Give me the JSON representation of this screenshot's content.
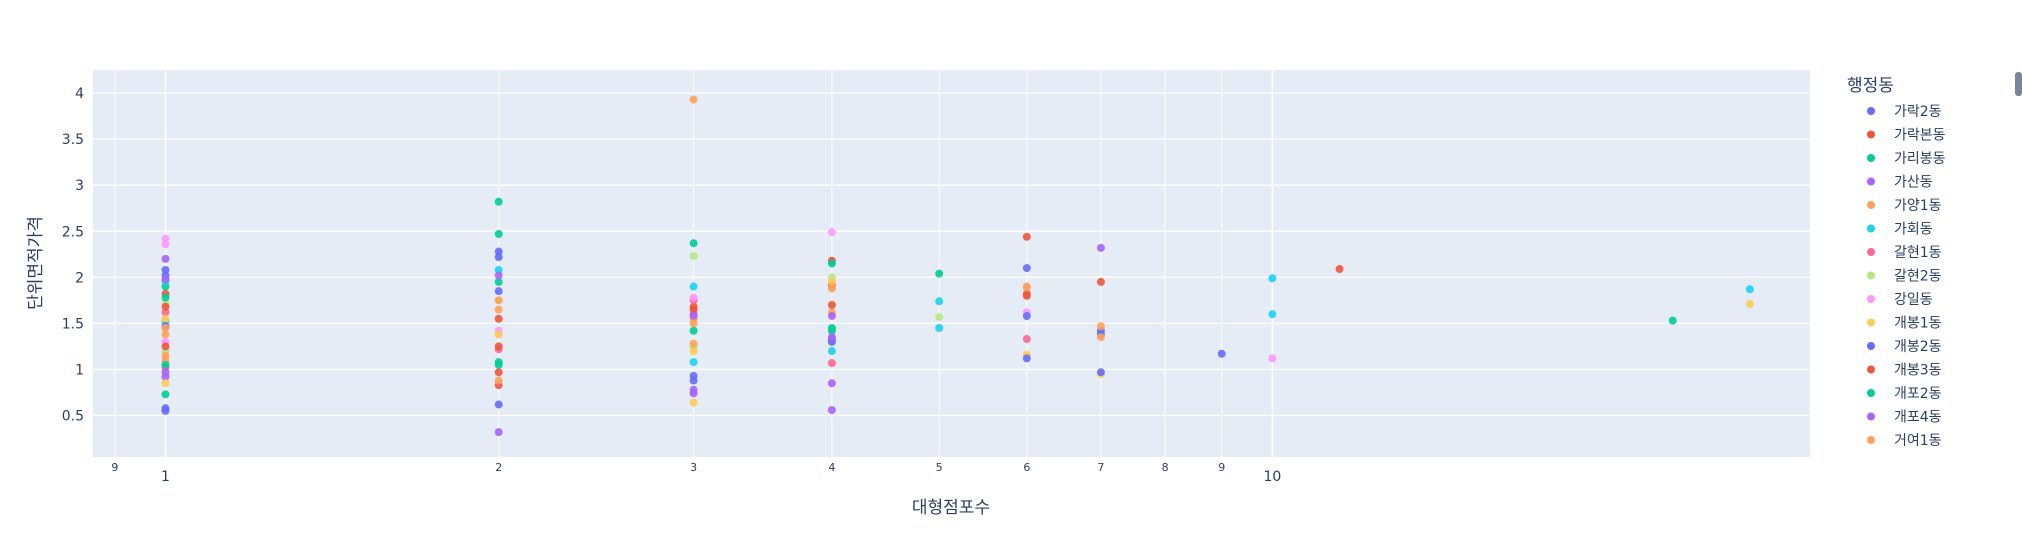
{
  "chart_data": {
    "type": "scatter",
    "xlabel": "대형점포수",
    "ylabel": "단위면적가격",
    "x_scale": "log",
    "xlim": [
      0.86,
      30.6
    ],
    "ylim": [
      0.05,
      4.25
    ],
    "x_major_ticks": [
      1,
      10
    ],
    "x_minor_ticks": [
      9,
      2,
      3,
      4,
      5,
      6,
      7,
      8,
      9
    ],
    "y_ticks": [
      0.5,
      1,
      1.5,
      2,
      2.5,
      3,
      3.5,
      4
    ],
    "grid": true,
    "legend_title": "행정동",
    "legend_position": "right",
    "series": [
      {
        "name": "가락2동",
        "color": "#636efa",
        "points": [
          [
            1,
            0.55
          ],
          [
            1,
            2.02
          ],
          [
            2,
            0.62
          ],
          [
            2,
            2.22
          ],
          [
            3,
            0.93
          ],
          [
            4,
            1.33
          ],
          [
            6,
            2.1
          ],
          [
            7,
            1.42
          ],
          [
            9,
            1.17
          ]
        ]
      },
      {
        "name": "가락본동",
        "color": "#ef553b",
        "points": [
          [
            1,
            1.82
          ],
          [
            2,
            1.55
          ],
          [
            2,
            0.97
          ],
          [
            3,
            1.68
          ],
          [
            4,
            1.92
          ],
          [
            6,
            2.44
          ],
          [
            6,
            1.8
          ],
          [
            7,
            1.95
          ],
          [
            11.5,
            2.09
          ]
        ]
      },
      {
        "name": "가리봉동",
        "color": "#00cc96",
        "points": [
          [
            1,
            0.73
          ],
          [
            1,
            1.9
          ],
          [
            2,
            2.82
          ],
          [
            2,
            2.47
          ],
          [
            2,
            1.05
          ],
          [
            3,
            2.37
          ],
          [
            4,
            1.45
          ],
          [
            5,
            2.04
          ],
          [
            23,
            1.53
          ]
        ]
      },
      {
        "name": "가산동",
        "color": "#ab63fa",
        "points": [
          [
            1,
            0.92
          ],
          [
            1,
            2.2
          ],
          [
            2,
            0.32
          ],
          [
            3,
            0.74
          ],
          [
            3,
            1.6
          ],
          [
            4,
            0.85
          ],
          [
            4,
            0.56
          ],
          [
            7,
            2.32
          ]
        ]
      },
      {
        "name": "가양1동",
        "color": "#ffa15a",
        "points": [
          [
            1,
            1.1
          ],
          [
            1,
            1.38
          ],
          [
            2,
            1.65
          ],
          [
            3,
            3.93
          ],
          [
            3,
            1.55
          ],
          [
            4,
            1.62
          ],
          [
            6,
            1.9
          ],
          [
            7,
            1.47
          ]
        ]
      },
      {
        "name": "가회동",
        "color": "#19d3f3",
        "points": [
          [
            1,
            1.52
          ],
          [
            1,
            1.96
          ],
          [
            2,
            2.08
          ],
          [
            3,
            1.9
          ],
          [
            3,
            1.08
          ],
          [
            4,
            1.2
          ],
          [
            5,
            1.74
          ],
          [
            5,
            1.45
          ],
          [
            10,
            1.6
          ],
          [
            10,
            1.99
          ],
          [
            27,
            1.87
          ]
        ]
      },
      {
        "name": "갈현1동",
        "color": "#ff6692",
        "points": [
          [
            1,
            1.02
          ],
          [
            1,
            1.62
          ],
          [
            2,
            1.22
          ],
          [
            3,
            1.75
          ],
          [
            4,
            1.07
          ],
          [
            6,
            1.33
          ]
        ]
      },
      {
        "name": "갈현2동",
        "color": "#b6e880",
        "points": [
          [
            1,
            1.2
          ],
          [
            1,
            1.72
          ],
          [
            2,
            1.75
          ],
          [
            3,
            2.23
          ],
          [
            3,
            1.25
          ],
          [
            4,
            2.0
          ],
          [
            5,
            1.57
          ]
        ]
      },
      {
        "name": "강일동",
        "color": "#ff97ff",
        "points": [
          [
            1,
            2.42
          ],
          [
            1,
            2.36
          ],
          [
            1,
            1.3
          ],
          [
            2,
            1.42
          ],
          [
            3,
            1.78
          ],
          [
            4,
            2.49
          ],
          [
            6,
            1.62
          ],
          [
            10,
            1.12
          ]
        ]
      },
      {
        "name": "개봉1동",
        "color": "#fecb52",
        "points": [
          [
            1,
            0.85
          ],
          [
            1,
            1.55
          ],
          [
            2,
            1.38
          ],
          [
            3,
            0.64
          ],
          [
            3,
            1.2
          ],
          [
            4,
            1.95
          ],
          [
            6,
            1.16
          ],
          [
            7,
            0.95
          ],
          [
            27,
            1.71
          ]
        ]
      },
      {
        "name": "개봉2동",
        "color": "#636efa",
        "points": [
          [
            1,
            0.58
          ],
          [
            1,
            1.47
          ],
          [
            1,
            2.08
          ],
          [
            2,
            2.28
          ],
          [
            2,
            1.85
          ],
          [
            3,
            0.88
          ],
          [
            4,
            1.3
          ],
          [
            6,
            1.58
          ],
          [
            6,
            1.12
          ],
          [
            7,
            0.97
          ],
          [
            7,
            1.38
          ]
        ]
      },
      {
        "name": "개봉3동",
        "color": "#ef553b",
        "points": [
          [
            1,
            1.25
          ],
          [
            1,
            1.68
          ],
          [
            2,
            0.83
          ],
          [
            2,
            1.25
          ],
          [
            3,
            1.65
          ],
          [
            4,
            2.18
          ],
          [
            4,
            1.7
          ],
          [
            6,
            1.82
          ]
        ]
      },
      {
        "name": "개포2동",
        "color": "#00cc96",
        "points": [
          [
            1,
            1.05
          ],
          [
            1,
            1.78
          ],
          [
            2,
            1.95
          ],
          [
            2,
            1.08
          ],
          [
            3,
            1.42
          ],
          [
            4,
            1.42
          ],
          [
            4,
            2.15
          ]
        ]
      },
      {
        "name": "개포4동",
        "color": "#ab63fa",
        "points": [
          [
            1,
            0.97
          ],
          [
            1,
            1.98
          ],
          [
            2,
            2.02
          ],
          [
            3,
            0.78
          ],
          [
            3,
            1.58
          ],
          [
            4,
            1.58
          ],
          [
            4,
            1.35
          ]
        ]
      },
      {
        "name": "거여1동",
        "color": "#ffa15a",
        "points": [
          [
            1,
            1.15
          ],
          [
            1,
            1.45
          ],
          [
            2,
            1.75
          ],
          [
            2,
            0.88
          ],
          [
            3,
            1.28
          ],
          [
            3,
            1.5
          ],
          [
            4,
            1.88
          ],
          [
            6,
            1.89
          ],
          [
            7,
            1.35
          ]
        ]
      }
    ]
  }
}
